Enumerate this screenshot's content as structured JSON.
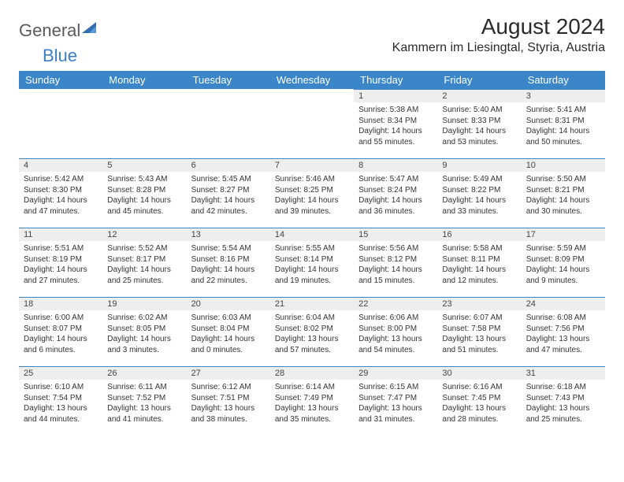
{
  "logo": {
    "part1": "General",
    "part2": "Blue"
  },
  "header": {
    "title": "August 2024",
    "location": "Kammern im Liesingtal, Styria, Austria"
  },
  "colors": {
    "header_bg": "#3a86c8",
    "header_text": "#ffffff",
    "daynum_bg": "#eeeeee",
    "border": "#3a86c8",
    "logo_gray": "#5a5a5a",
    "logo_blue": "#3a7fc4"
  },
  "daysOfWeek": [
    "Sunday",
    "Monday",
    "Tuesday",
    "Wednesday",
    "Thursday",
    "Friday",
    "Saturday"
  ],
  "weeks": [
    [
      {
        "empty": true
      },
      {
        "empty": true
      },
      {
        "empty": true
      },
      {
        "empty": true
      },
      {
        "n": "1",
        "sr": "5:38 AM",
        "ss": "8:34 PM",
        "dl": "14 hours and 55 minutes."
      },
      {
        "n": "2",
        "sr": "5:40 AM",
        "ss": "8:33 PM",
        "dl": "14 hours and 53 minutes."
      },
      {
        "n": "3",
        "sr": "5:41 AM",
        "ss": "8:31 PM",
        "dl": "14 hours and 50 minutes."
      }
    ],
    [
      {
        "n": "4",
        "sr": "5:42 AM",
        "ss": "8:30 PM",
        "dl": "14 hours and 47 minutes."
      },
      {
        "n": "5",
        "sr": "5:43 AM",
        "ss": "8:28 PM",
        "dl": "14 hours and 45 minutes."
      },
      {
        "n": "6",
        "sr": "5:45 AM",
        "ss": "8:27 PM",
        "dl": "14 hours and 42 minutes."
      },
      {
        "n": "7",
        "sr": "5:46 AM",
        "ss": "8:25 PM",
        "dl": "14 hours and 39 minutes."
      },
      {
        "n": "8",
        "sr": "5:47 AM",
        "ss": "8:24 PM",
        "dl": "14 hours and 36 minutes."
      },
      {
        "n": "9",
        "sr": "5:49 AM",
        "ss": "8:22 PM",
        "dl": "14 hours and 33 minutes."
      },
      {
        "n": "10",
        "sr": "5:50 AM",
        "ss": "8:21 PM",
        "dl": "14 hours and 30 minutes."
      }
    ],
    [
      {
        "n": "11",
        "sr": "5:51 AM",
        "ss": "8:19 PM",
        "dl": "14 hours and 27 minutes."
      },
      {
        "n": "12",
        "sr": "5:52 AM",
        "ss": "8:17 PM",
        "dl": "14 hours and 25 minutes."
      },
      {
        "n": "13",
        "sr": "5:54 AM",
        "ss": "8:16 PM",
        "dl": "14 hours and 22 minutes."
      },
      {
        "n": "14",
        "sr": "5:55 AM",
        "ss": "8:14 PM",
        "dl": "14 hours and 19 minutes."
      },
      {
        "n": "15",
        "sr": "5:56 AM",
        "ss": "8:12 PM",
        "dl": "14 hours and 15 minutes."
      },
      {
        "n": "16",
        "sr": "5:58 AM",
        "ss": "8:11 PM",
        "dl": "14 hours and 12 minutes."
      },
      {
        "n": "17",
        "sr": "5:59 AM",
        "ss": "8:09 PM",
        "dl": "14 hours and 9 minutes."
      }
    ],
    [
      {
        "n": "18",
        "sr": "6:00 AM",
        "ss": "8:07 PM",
        "dl": "14 hours and 6 minutes."
      },
      {
        "n": "19",
        "sr": "6:02 AM",
        "ss": "8:05 PM",
        "dl": "14 hours and 3 minutes."
      },
      {
        "n": "20",
        "sr": "6:03 AM",
        "ss": "8:04 PM",
        "dl": "14 hours and 0 minutes."
      },
      {
        "n": "21",
        "sr": "6:04 AM",
        "ss": "8:02 PM",
        "dl": "13 hours and 57 minutes."
      },
      {
        "n": "22",
        "sr": "6:06 AM",
        "ss": "8:00 PM",
        "dl": "13 hours and 54 minutes."
      },
      {
        "n": "23",
        "sr": "6:07 AM",
        "ss": "7:58 PM",
        "dl": "13 hours and 51 minutes."
      },
      {
        "n": "24",
        "sr": "6:08 AM",
        "ss": "7:56 PM",
        "dl": "13 hours and 47 minutes."
      }
    ],
    [
      {
        "n": "25",
        "sr": "6:10 AM",
        "ss": "7:54 PM",
        "dl": "13 hours and 44 minutes."
      },
      {
        "n": "26",
        "sr": "6:11 AM",
        "ss": "7:52 PM",
        "dl": "13 hours and 41 minutes."
      },
      {
        "n": "27",
        "sr": "6:12 AM",
        "ss": "7:51 PM",
        "dl": "13 hours and 38 minutes."
      },
      {
        "n": "28",
        "sr": "6:14 AM",
        "ss": "7:49 PM",
        "dl": "13 hours and 35 minutes."
      },
      {
        "n": "29",
        "sr": "6:15 AM",
        "ss": "7:47 PM",
        "dl": "13 hours and 31 minutes."
      },
      {
        "n": "30",
        "sr": "6:16 AM",
        "ss": "7:45 PM",
        "dl": "13 hours and 28 minutes."
      },
      {
        "n": "31",
        "sr": "6:18 AM",
        "ss": "7:43 PM",
        "dl": "13 hours and 25 minutes."
      }
    ]
  ],
  "labels": {
    "sunrise": "Sunrise: ",
    "sunset": "Sunset: ",
    "daylight": "Daylight: "
  }
}
